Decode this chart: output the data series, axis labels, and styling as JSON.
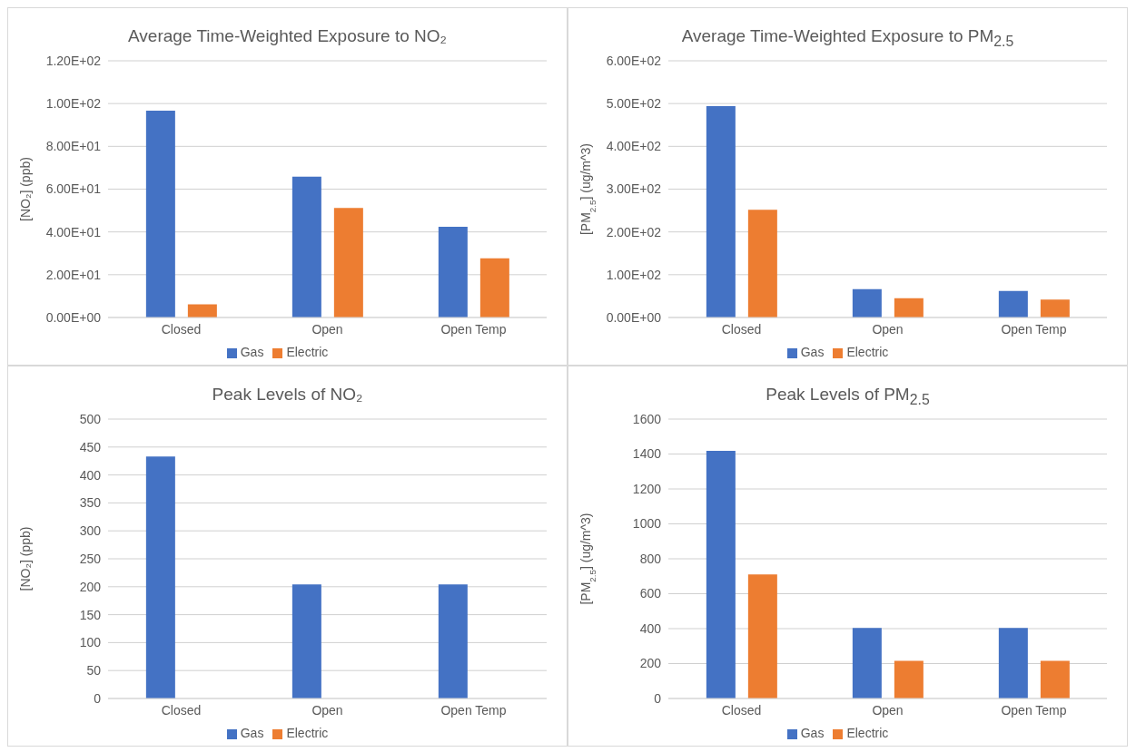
{
  "chart_data": [
    {
      "type": "bar",
      "title": "Average Time-Weighted Exposure to NO₂",
      "ylabel": "[NO₂] (ppb)",
      "categories": [
        "Closed",
        "Open",
        "Open Temp"
      ],
      "series": [
        {
          "name": "Gas",
          "color": "#4472c4",
          "values": [
            96.7,
            65.8,
            42.4
          ]
        },
        {
          "name": "Electric",
          "color": "#ed7d31",
          "values": [
            6.2,
            51.2,
            27.7
          ]
        }
      ],
      "ylim": [
        0,
        120
      ],
      "yticks": [
        {
          "value": 0,
          "label": "0.00E+00"
        },
        {
          "value": 20,
          "label": "2.00E+01"
        },
        {
          "value": 40,
          "label": "4.00E+01"
        },
        {
          "value": 60,
          "label": "6.00E+01"
        },
        {
          "value": 80,
          "label": "8.00E+01"
        },
        {
          "value": 100,
          "label": "1.00E+02"
        },
        {
          "value": 120,
          "label": "1.20E+02"
        }
      ],
      "grid": "y",
      "legend": "bottom"
    },
    {
      "type": "bar",
      "title": "Average Time-Weighted Exposure to PM$_{2.5}$",
      "ylabel": "[PM$_{2.5}$] (ug/m^3)",
      "categories": [
        "Closed",
        "Open",
        "Open Temp"
      ],
      "series": [
        {
          "name": "Gas",
          "color": "#4472c4",
          "values": [
            494,
            66,
            62
          ]
        },
        {
          "name": "Electric",
          "color": "#ed7d31",
          "values": [
            252,
            45,
            42
          ]
        }
      ],
      "ylim": [
        0,
        600
      ],
      "yticks": [
        {
          "value": 0,
          "label": "0.00E+00"
        },
        {
          "value": 100,
          "label": "1.00E+02"
        },
        {
          "value": 200,
          "label": "2.00E+02"
        },
        {
          "value": 300,
          "label": "3.00E+02"
        },
        {
          "value": 400,
          "label": "4.00E+02"
        },
        {
          "value": 500,
          "label": "5.00E+02"
        },
        {
          "value": 600,
          "label": "6.00E+02"
        }
      ],
      "grid": "y",
      "legend": "bottom"
    },
    {
      "type": "bar",
      "title": "Peak Levels of NO₂",
      "ylabel": "[NO₂] (ppb)",
      "categories": [
        "Closed",
        "Open",
        "Open Temp"
      ],
      "series": [
        {
          "name": "Gas",
          "color": "#4472c4",
          "values": [
            433,
            204,
            204
          ]
        },
        {
          "name": "Electric",
          "color": "#ed7d31",
          "values": [
            0,
            0,
            0
          ]
        }
      ],
      "ylim": [
        0,
        500
      ],
      "yticks": [
        0,
        50,
        100,
        150,
        200,
        250,
        300,
        350,
        400,
        450,
        500
      ],
      "grid": "y",
      "legend": "bottom"
    },
    {
      "type": "bar",
      "title": "Peak Levels of PM$_{2.5}$",
      "ylabel": "[PM$_{2.5}$] (ug/m^3)",
      "categories": [
        "Closed",
        "Open",
        "Open Temp"
      ],
      "series": [
        {
          "name": "Gas",
          "color": "#4472c4",
          "values": [
            1418,
            404,
            404
          ]
        },
        {
          "name": "Electric",
          "color": "#ed7d31",
          "values": [
            711,
            215,
            215
          ]
        }
      ],
      "ylim": [
        0,
        1600
      ],
      "yticks": [
        0,
        200,
        400,
        600,
        800,
        1000,
        1200,
        1400,
        1600
      ],
      "grid": "y",
      "legend": "bottom"
    }
  ]
}
